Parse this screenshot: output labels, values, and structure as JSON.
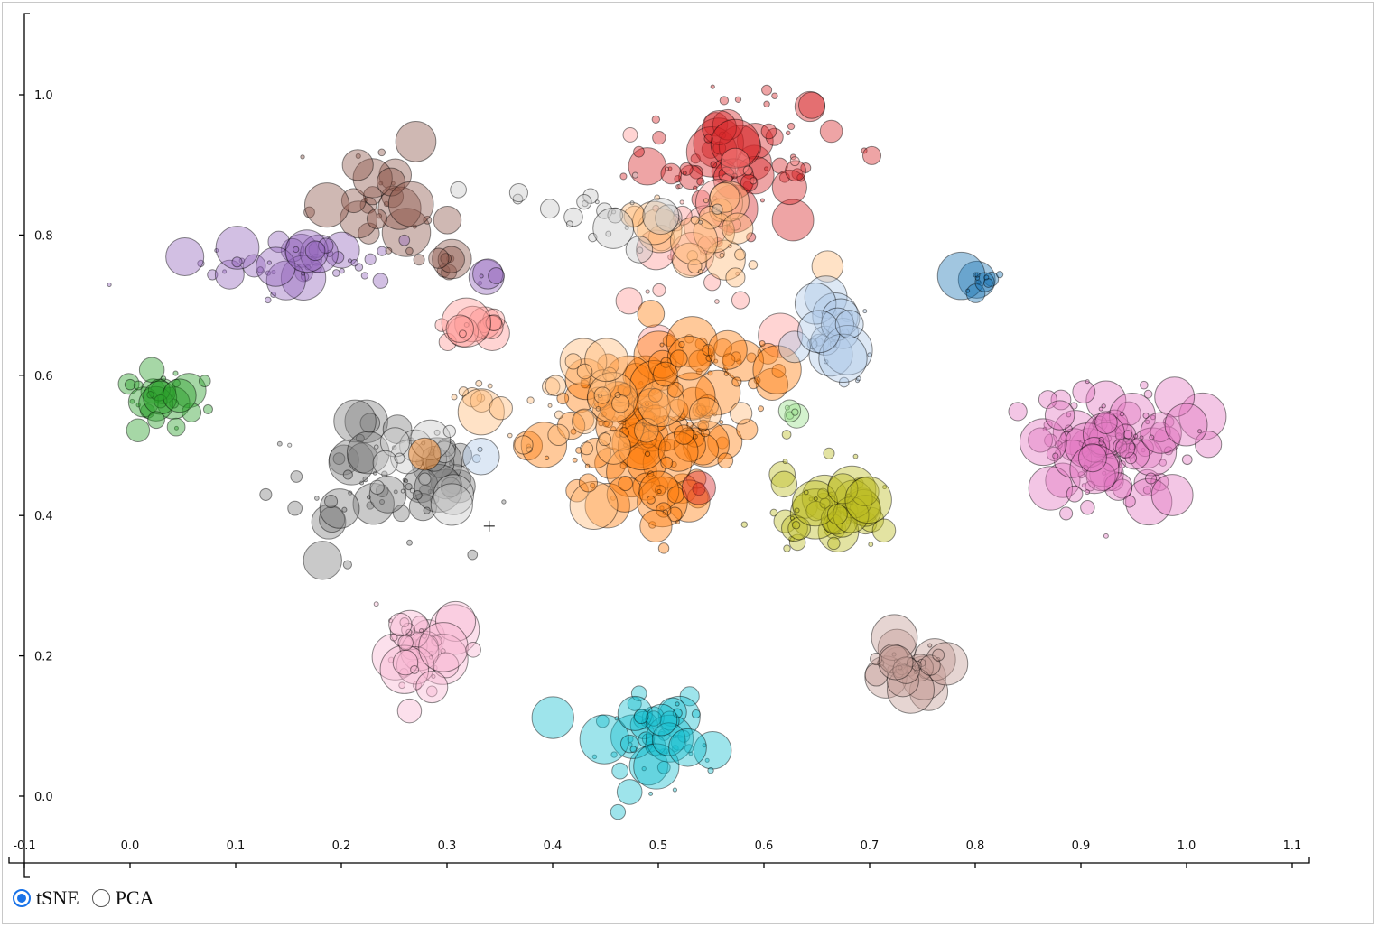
{
  "chart_data": {
    "type": "scatter",
    "title": "",
    "xlabel": "",
    "ylabel": "",
    "xlim": [
      -0.1,
      1.1
    ],
    "ylim": [
      -0.1,
      1.1
    ],
    "x_ticks": [
      "-0.1",
      "0.0",
      "0.1",
      "0.2",
      "0.3",
      "0.4",
      "0.5",
      "0.6",
      "0.7",
      "0.8",
      "0.9",
      "1.0",
      "1.1"
    ],
    "y_ticks": [
      "0.0",
      "0.2",
      "0.4",
      "0.6",
      "0.8",
      "1.0"
    ],
    "grid": false,
    "legend": "none",
    "marker": {
      "x": 0.34,
      "y": 0.385,
      "symbol": "+"
    },
    "clusters": [
      {
        "color": "#d62728",
        "x": 0.57,
        "y": 0.91,
        "spread": [
          0.05,
          0.05
        ],
        "count": 70
      },
      {
        "color": "#ff9896",
        "x": 0.535,
        "y": 0.79,
        "spread": [
          0.04,
          0.06
        ],
        "count": 35
      },
      {
        "color": "#ffbb78",
        "x": 0.545,
        "y": 0.81,
        "spread": [
          0.04,
          0.05
        ],
        "count": 25
      },
      {
        "color": "#c7c7c7",
        "x": 0.45,
        "y": 0.83,
        "spread": [
          0.04,
          0.03
        ],
        "count": 25
      },
      {
        "color": "#8c564b",
        "x": 0.24,
        "y": 0.85,
        "spread": [
          0.03,
          0.03
        ],
        "count": 30
      },
      {
        "color": "#9467bd",
        "x": 0.15,
        "y": 0.76,
        "spread": [
          0.05,
          0.02
        ],
        "count": 50
      },
      {
        "color": "#8c564b",
        "x": 0.295,
        "y": 0.765,
        "spread": [
          0.01,
          0.01
        ],
        "count": 8
      },
      {
        "color": "#9467bd",
        "x": 0.335,
        "y": 0.74,
        "spread": [
          0.005,
          0.005
        ],
        "count": 5
      },
      {
        "color": "#ff9896",
        "x": 0.315,
        "y": 0.665,
        "spread": [
          0.015,
          0.015
        ],
        "count": 15
      },
      {
        "color": "#2ca02c",
        "x": 0.03,
        "y": 0.56,
        "spread": [
          0.025,
          0.025
        ],
        "count": 30
      },
      {
        "color": "#ffbb78",
        "x": 0.33,
        "y": 0.57,
        "spread": [
          0.015,
          0.015
        ],
        "count": 10
      },
      {
        "color": "#7f7f7f",
        "x": 0.235,
        "y": 0.45,
        "spread": [
          0.05,
          0.04
        ],
        "count": 65
      },
      {
        "color": "#c7c7c7",
        "x": 0.265,
        "y": 0.47,
        "spread": [
          0.04,
          0.03
        ],
        "count": 18
      },
      {
        "color": "#aec7e8",
        "x": 0.33,
        "y": 0.48,
        "spread": [
          0.01,
          0.01
        ],
        "count": 3
      },
      {
        "color": "#ff7f0e",
        "x": 0.48,
        "y": 0.53,
        "spread": [
          0.05,
          0.05
        ],
        "count": 130
      },
      {
        "color": "#ffbb78",
        "x": 0.44,
        "y": 0.56,
        "spread": [
          0.05,
          0.05
        ],
        "count": 30
      },
      {
        "color": "#ff7f0e",
        "x": 0.55,
        "y": 0.63,
        "spread": [
          0.03,
          0.015
        ],
        "count": 30
      },
      {
        "color": "#ff7f0e",
        "x": 0.51,
        "y": 0.41,
        "spread": [
          0.015,
          0.02
        ],
        "count": 15
      },
      {
        "color": "#aec7e8",
        "x": 0.665,
        "y": 0.65,
        "spread": [
          0.02,
          0.03
        ],
        "count": 30
      },
      {
        "color": "#1f77b4",
        "x": 0.805,
        "y": 0.735,
        "spread": [
          0.01,
          0.01
        ],
        "count": 14
      },
      {
        "color": "#e377c2",
        "x": 0.93,
        "y": 0.5,
        "spread": [
          0.04,
          0.04
        ],
        "count": 110
      },
      {
        "color": "#98df8a",
        "x": 0.63,
        "y": 0.545,
        "spread": [
          0.005,
          0.005
        ],
        "count": 5
      },
      {
        "color": "#bcbd22",
        "x": 0.66,
        "y": 0.41,
        "spread": [
          0.025,
          0.03
        ],
        "count": 60
      },
      {
        "color": "#f7b6d2",
        "x": 0.275,
        "y": 0.2,
        "spread": [
          0.02,
          0.03
        ],
        "count": 45
      },
      {
        "color": "#17becf",
        "x": 0.5,
        "y": 0.08,
        "spread": [
          0.03,
          0.035
        ],
        "count": 60
      },
      {
        "color": "#c49c94",
        "x": 0.735,
        "y": 0.185,
        "spread": [
          0.02,
          0.015
        ],
        "count": 35
      },
      {
        "color": "#d62728",
        "x": 0.538,
        "y": 0.44,
        "spread": [
          0.003,
          0.003
        ],
        "count": 2
      },
      {
        "color": "#ff7f0e",
        "x": 0.437,
        "y": 0.44,
        "spread": [
          0.003,
          0.003
        ],
        "count": 2
      }
    ]
  },
  "controls": {
    "options": [
      {
        "label": "tSNE",
        "checked": true
      },
      {
        "label": "PCA",
        "checked": false
      }
    ]
  }
}
